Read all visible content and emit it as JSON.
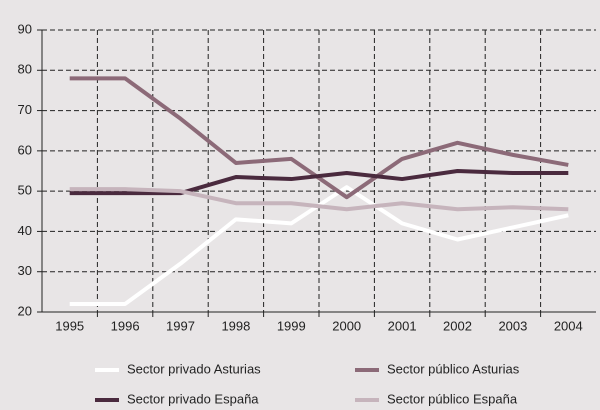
{
  "chart_data": {
    "type": "line",
    "categories": [
      "1995",
      "1996",
      "1997",
      "1998",
      "1999",
      "2000",
      "2001",
      "2002",
      "2003",
      "2004"
    ],
    "series": [
      {
        "name": "Sector privado Asturias",
        "color": "#ffffff",
        "values": [
          22,
          22,
          32,
          43,
          42,
          51,
          42,
          38,
          41,
          44
        ]
      },
      {
        "name": "Sector público Asturias",
        "color": "#8c6a78",
        "values": [
          78,
          78,
          68,
          57,
          58,
          48.5,
          58,
          62,
          59,
          56.5
        ]
      },
      {
        "name": "Sector privado España",
        "color": "#4a2a3e",
        "values": [
          49.5,
          49.5,
          49.5,
          53.5,
          53,
          54.5,
          53,
          55,
          54.5,
          54.5
        ]
      },
      {
        "name": "Sector público España",
        "color": "#c6b4bc",
        "values": [
          50.5,
          50.5,
          50,
          47,
          47,
          45.5,
          47,
          45.5,
          46,
          45.5
        ]
      }
    ],
    "ylim": [
      20,
      90
    ],
    "yticks": [
      20,
      30,
      40,
      50,
      60,
      70,
      80,
      90
    ],
    "grid": true
  }
}
